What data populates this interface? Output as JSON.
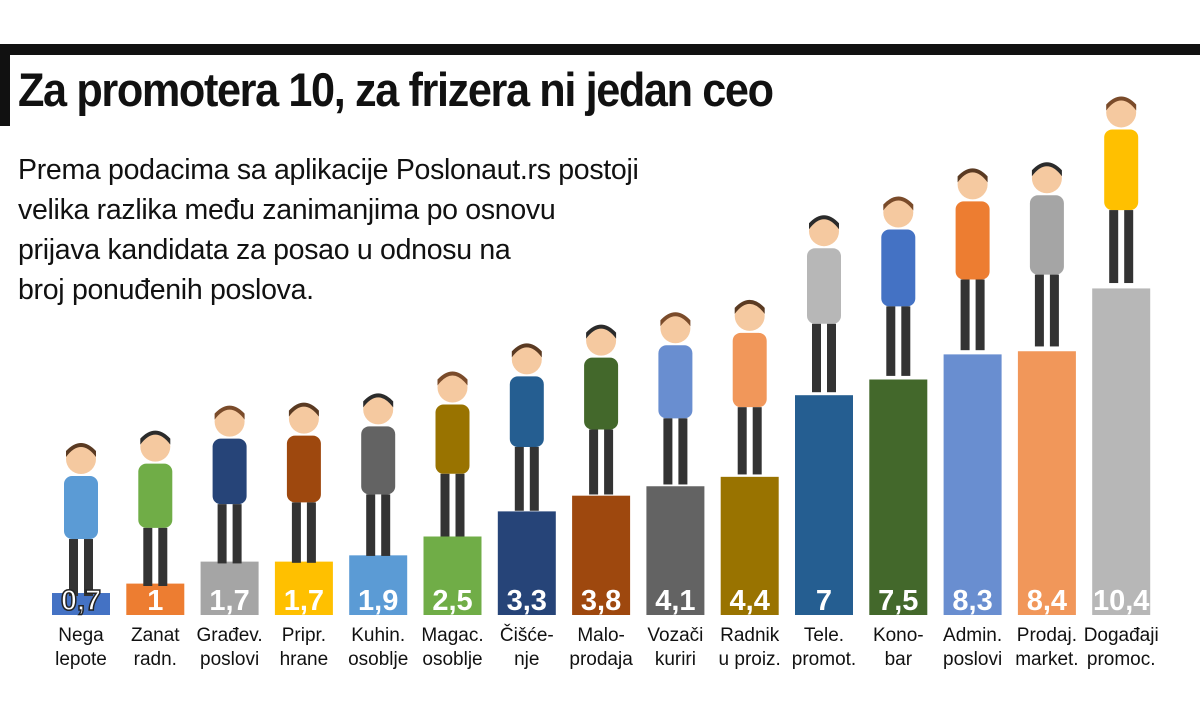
{
  "header": {
    "title": "Za promotera 10, za frizera ni jedan ceo",
    "subtitle_lines": [
      "Prema podacima sa aplikacije Poslonaut.rs postoji",
      "velika razlika među zanimanjima po osnovu",
      "prijava kandidata za posao u odnosu na",
      "broj ponuđenih poslova."
    ]
  },
  "chart_data": {
    "type": "bar",
    "title": "Za promotera 10, za frizera ni jedan ceo",
    "xlabel": "",
    "ylabel": "",
    "grid": false,
    "legend": "none",
    "categories": [
      [
        "Nega",
        "lepote"
      ],
      [
        "Zanat",
        "radn."
      ],
      [
        "Građev.",
        "poslovi"
      ],
      [
        "Pripr.",
        "hrane"
      ],
      [
        "Kuhin.",
        "osoblje"
      ],
      [
        "Magac.",
        "osoblje"
      ],
      [
        "Čišće-",
        "nje"
      ],
      [
        "Malo-",
        "prodaja"
      ],
      [
        "Vozači",
        "kuriri"
      ],
      [
        "Radnik",
        "u proiz."
      ],
      [
        "Tele.",
        "promot."
      ],
      [
        "Kono-",
        "bar"
      ],
      [
        "Admin.",
        "poslovi"
      ],
      [
        "Prodaj.",
        "market."
      ],
      [
        "Događaji",
        "promoc."
      ]
    ],
    "values": [
      0.7,
      1,
      1.7,
      1.7,
      1.9,
      2.5,
      3.3,
      3.8,
      4.1,
      4.4,
      7,
      7.5,
      8.3,
      8.4,
      10.4
    ],
    "value_labels": [
      "0,7",
      "1",
      "1,7",
      "1,7",
      "1,9",
      "2,5",
      "3,3",
      "3,8",
      "4,1",
      "4,4",
      "7",
      "7,5",
      "8,3",
      "8,4",
      "10,4"
    ],
    "colors": [
      "#4472c4",
      "#ed7d31",
      "#a5a5a5",
      "#ffc000",
      "#5b9bd5",
      "#70ad47",
      "#264478",
      "#9e480e",
      "#636363",
      "#997300",
      "#255e91",
      "#43682b",
      "#698ed0",
      "#f1975a",
      "#b7b7b7"
    ]
  }
}
